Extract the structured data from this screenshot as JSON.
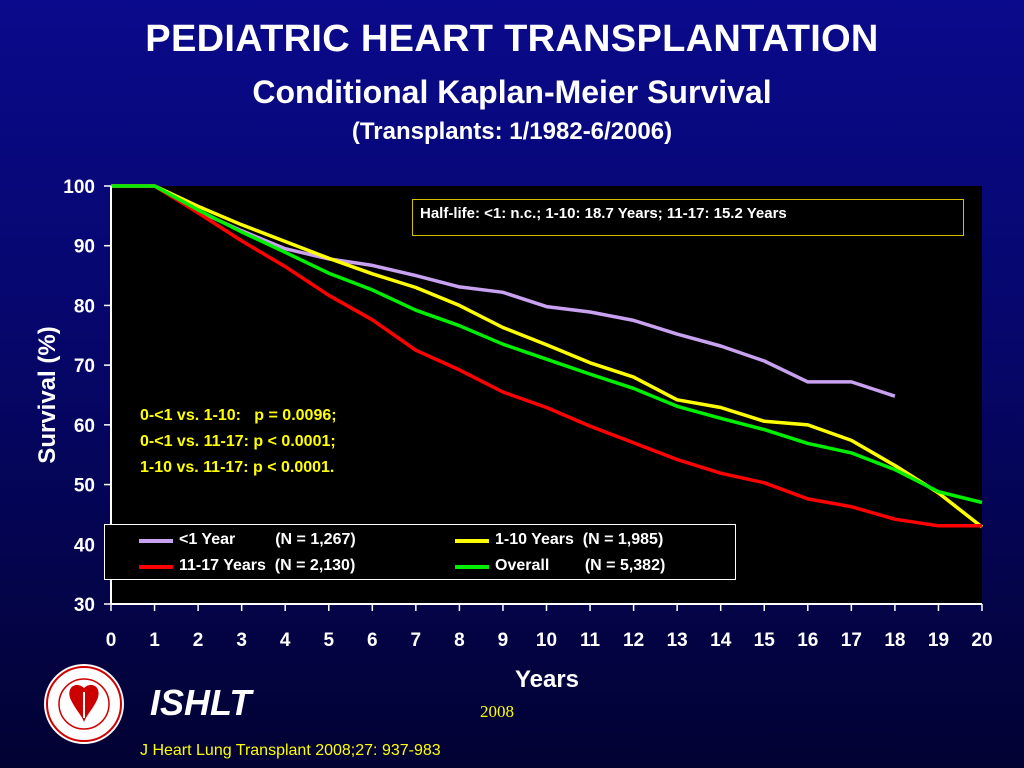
{
  "header": {
    "title": "PEDIATRIC HEART TRANSPLANTATION",
    "subtitle": "Conditional Kaplan-Meier Survival",
    "period": "(Transplants: 1/1982-6/2006)"
  },
  "annotations": {
    "half_life": "Half-life:  <1: n.c.; 1-10: 18.7 Years; 11-17: 15.2 Years",
    "pvalues": [
      "0-<1 vs. 1-10:   p = 0.0096;",
      "0-<1 vs. 11-17: p < 0.0001;",
      "1-10 vs. 11-17: p < 0.0001."
    ]
  },
  "legend": {
    "items": [
      {
        "name": "<1 Year",
        "n": "(N = 1,267)",
        "label": "<1 Year         (N = 1,267)",
        "color": "#c8a2f0"
      },
      {
        "name": "1-10 Years",
        "n": "(N = 1,985)",
        "label": "1-10 Years  (N = 1,985)",
        "color": "#ffff00"
      },
      {
        "name": "11-17 Years",
        "n": "(N = 2,130)",
        "label": "11-17 Years  (N = 2,130)",
        "color": "#ff0000"
      },
      {
        "name": "Overall",
        "n": "(N = 5,382)",
        "label": "Overall        (N = 5,382)",
        "color": "#00ee00"
      }
    ]
  },
  "footer": {
    "org": "ISHLT",
    "year": "2008",
    "citation": "J Heart Lung Transplant 2008;27: 937-983",
    "logo_text": "INTERNATIONAL SOCIETY FOR HEART & LUNG TRANSPLANTATION"
  },
  "chart_data": {
    "type": "line",
    "xlabel": "Years",
    "ylabel": "Survival (%)",
    "xlim": [
      0,
      20
    ],
    "ylim": [
      30,
      100
    ],
    "xticks": [
      0,
      1,
      2,
      3,
      4,
      5,
      6,
      7,
      8,
      9,
      10,
      11,
      12,
      13,
      14,
      15,
      16,
      17,
      18,
      19,
      20
    ],
    "yticks": [
      30,
      40,
      50,
      60,
      70,
      80,
      90,
      100
    ],
    "grid": false,
    "legend_position": "bottom-left",
    "series": [
      {
        "name": "<1 Year",
        "color": "#c8a2f0",
        "x": [
          0,
          1,
          2,
          3,
          4,
          5,
          6,
          7,
          8,
          9,
          10,
          11,
          12,
          13,
          14,
          15,
          16,
          17,
          18
        ],
        "y": [
          100,
          100,
          95.8,
          92.5,
          89.5,
          87.8,
          86.7,
          85.0,
          83.1,
          82.2,
          79.8,
          78.9,
          77.5,
          75.2,
          73.2,
          70.7,
          67.2,
          67.2,
          64.8
        ]
      },
      {
        "name": "1-10 Years",
        "color": "#ffff00",
        "x": [
          0,
          1,
          2,
          3,
          4,
          5,
          6,
          7,
          8,
          9,
          10,
          11,
          12,
          13,
          14,
          15,
          16,
          17,
          18,
          19,
          20
        ],
        "y": [
          100,
          100,
          96.6,
          93.5,
          90.7,
          87.9,
          85.3,
          83.0,
          80.0,
          76.3,
          73.4,
          70.4,
          68.0,
          64.2,
          62.9,
          60.6,
          60.0,
          57.4,
          53.2,
          48.6,
          42.9
        ]
      },
      {
        "name": "11-17 Years",
        "color": "#ff0000",
        "x": [
          0,
          1,
          2,
          3,
          4,
          5,
          6,
          7,
          8,
          9,
          10,
          11,
          12,
          13,
          14,
          15,
          16,
          17,
          18,
          19,
          20
        ],
        "y": [
          100,
          100,
          95.5,
          90.8,
          86.5,
          81.7,
          77.6,
          72.5,
          69.2,
          65.5,
          62.9,
          59.8,
          57.0,
          54.2,
          51.9,
          50.3,
          47.6,
          46.3,
          44.2,
          43.1,
          43.1
        ]
      },
      {
        "name": "Overall",
        "color": "#00ee00",
        "x": [
          0,
          1,
          2,
          3,
          4,
          5,
          6,
          7,
          8,
          9,
          10,
          11,
          12,
          13,
          14,
          15,
          16,
          17,
          18,
          19,
          20
        ],
        "y": [
          100,
          100,
          96.0,
          92.3,
          88.9,
          85.4,
          82.6,
          79.2,
          76.6,
          73.5,
          71.0,
          68.5,
          66.1,
          63.1,
          61.1,
          59.2,
          56.9,
          55.3,
          52.5,
          48.8,
          47.0
        ]
      }
    ]
  }
}
